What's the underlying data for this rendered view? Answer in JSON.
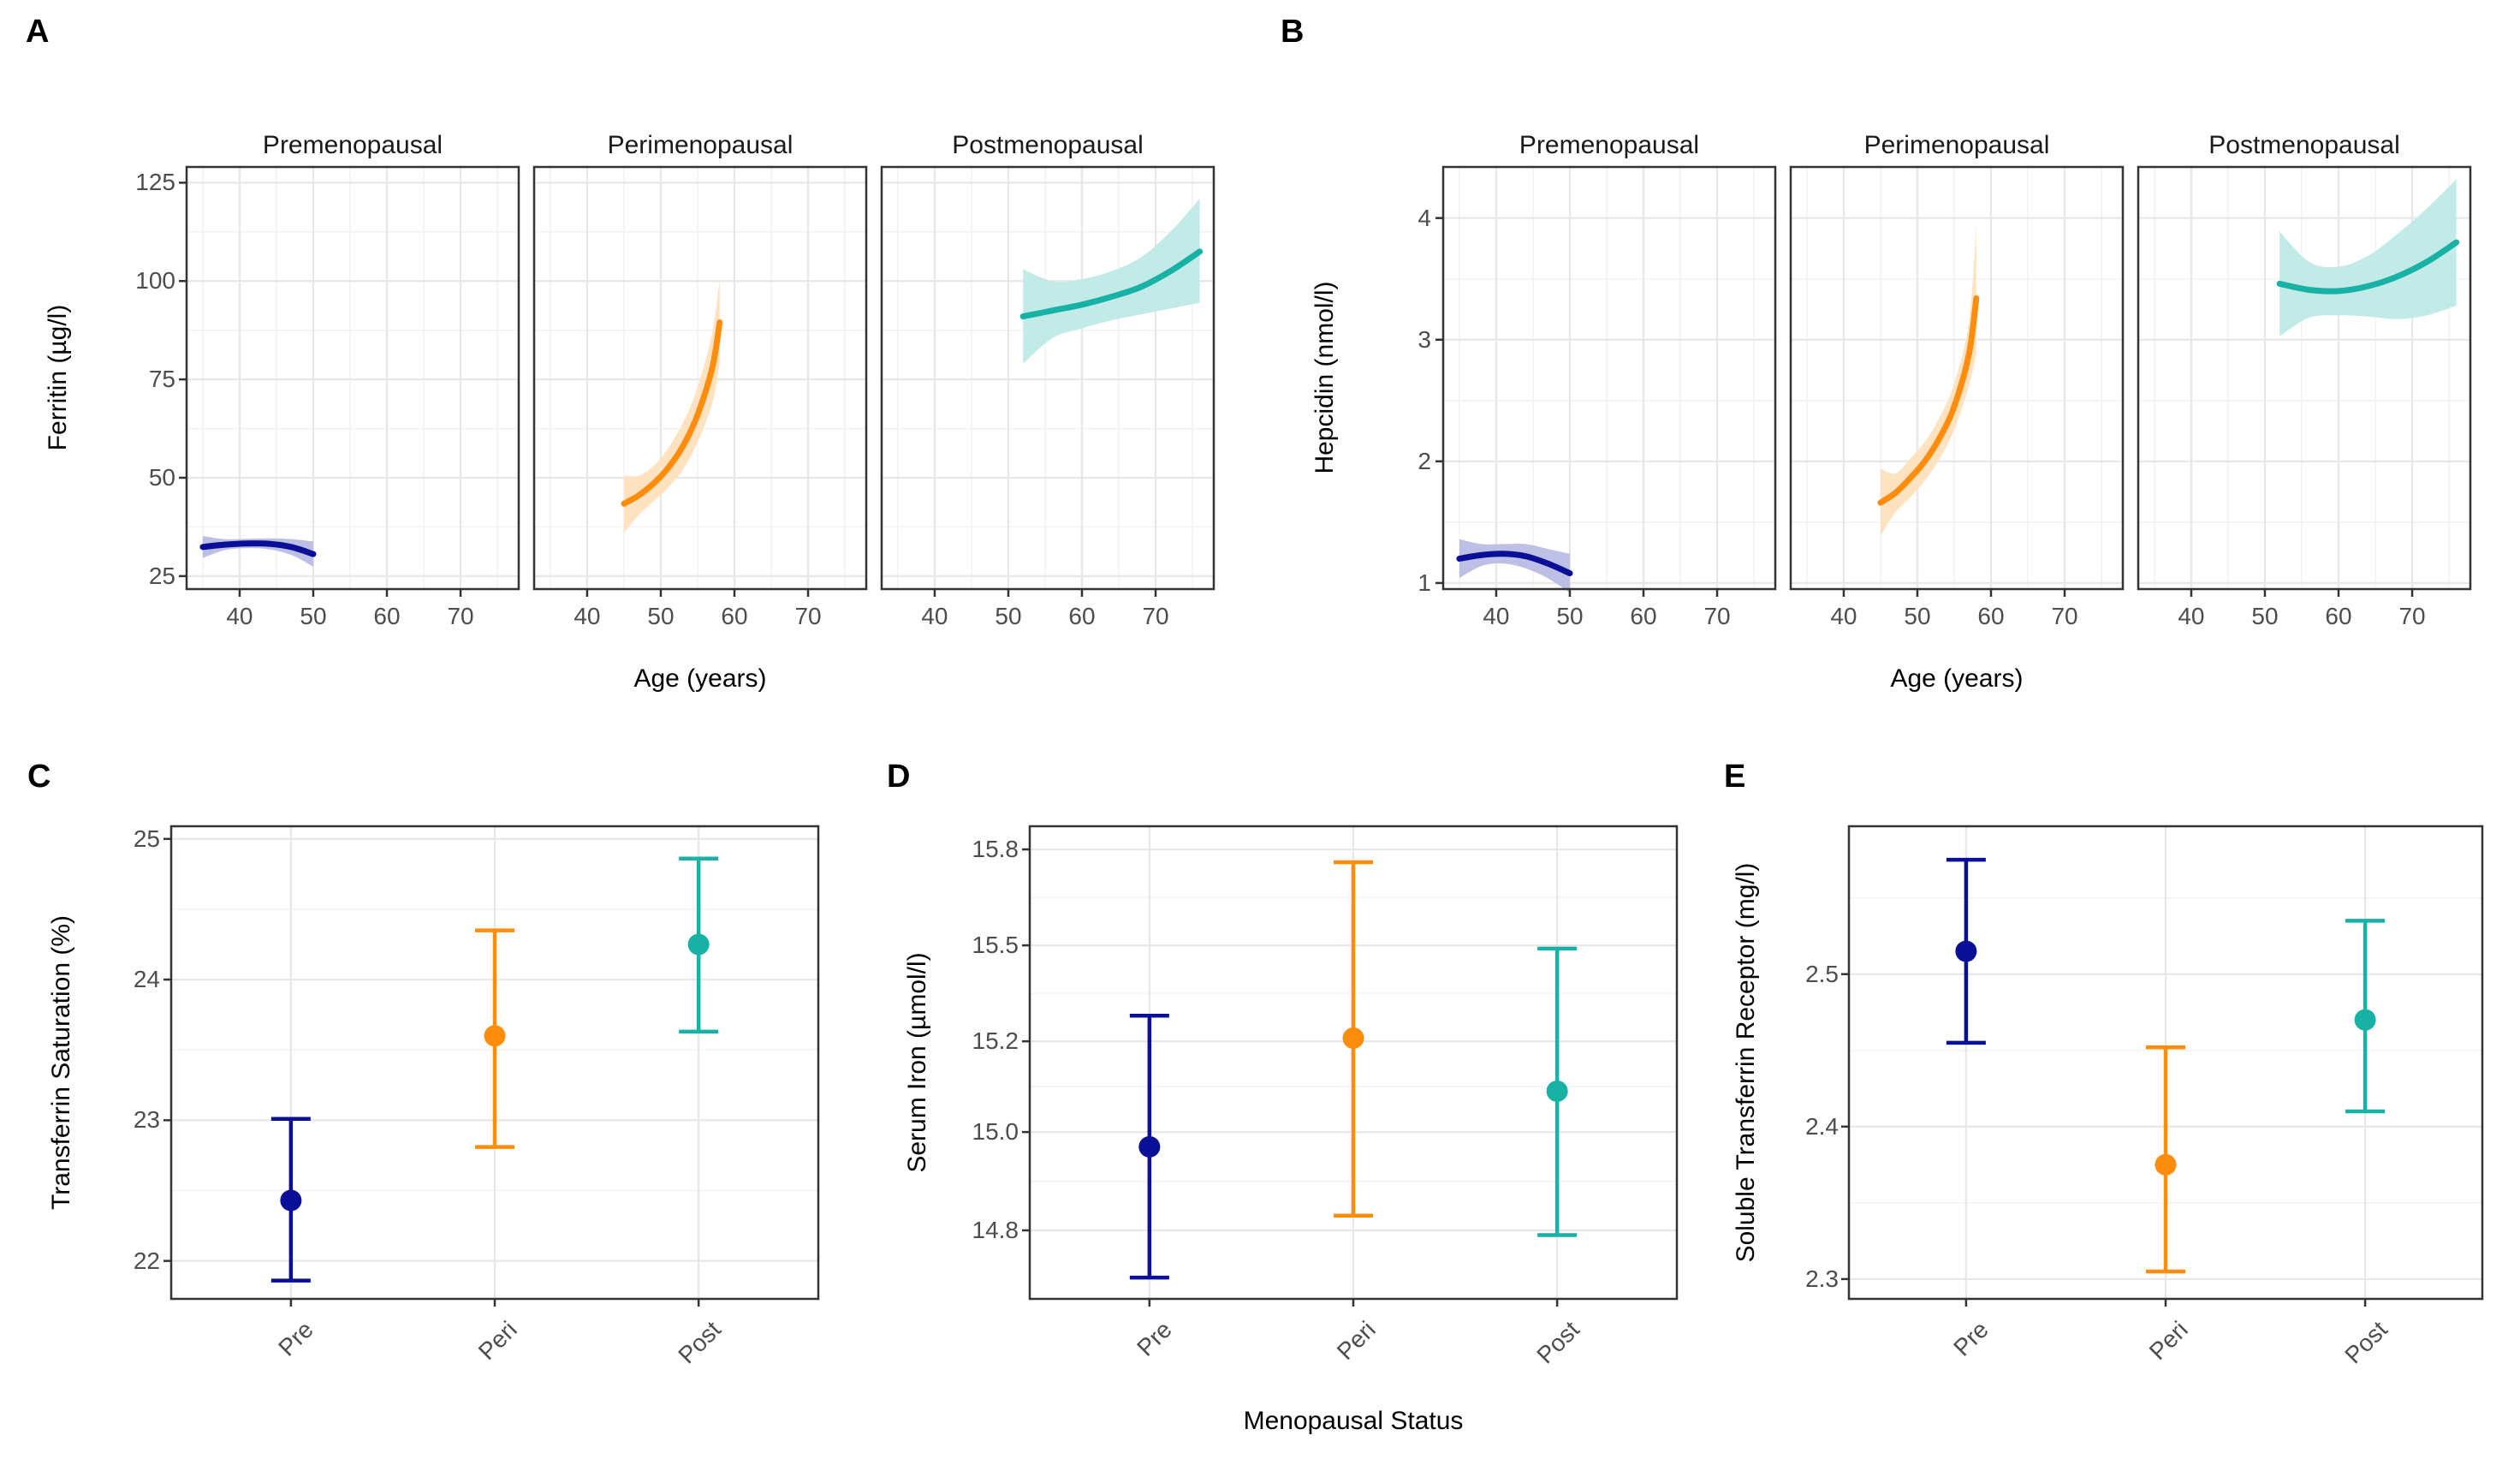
{
  "figure": {
    "background": "#ffffff",
    "panel_border_color": "#333333",
    "grid_major_color": "#e7e7e7",
    "grid_minor_color": "#f3f3f3",
    "tick_text_color": "#4d4d4d"
  },
  "colors": {
    "pre_navy": "#0A0F97",
    "peri_orange": "#FF8D0D",
    "post_teal": "#18B1A5",
    "pre_ribbon": "#BDBFE5",
    "peri_ribbon": "#FFE2C0",
    "post_ribbon": "#C2EBE8"
  },
  "chart_data": [
    {
      "id": "A",
      "panel_label": "A",
      "type": "area",
      "title": "",
      "xlabel": "Age (years)",
      "ylabel": "Ferritin (µg/l)",
      "xlim": [
        32.8,
        77.9
      ],
      "xticks": [
        40,
        50,
        60,
        70
      ],
      "xtick_labels": [
        "40",
        "50",
        "60",
        "70"
      ],
      "xminor": [
        35,
        45,
        55,
        65,
        75
      ],
      "ylim": [
        21.7,
        129.0
      ],
      "yticks": [
        25,
        50,
        75,
        100,
        125
      ],
      "ytick_labels": [
        "25",
        "50",
        "75",
        "100",
        "125"
      ],
      "yminor": [
        37.5,
        62.5,
        87.5,
        112.5
      ],
      "grid": true,
      "legend": "none",
      "facets": [
        {
          "title": "Premenopausal",
          "series": "Pre",
          "color_key": "pre_navy",
          "ribbon_key": "pre_ribbon",
          "x": [
            35,
            38,
            41,
            44,
            47,
            50
          ],
          "y": [
            32.4,
            33.0,
            33.3,
            33.2,
            32.4,
            30.6
          ],
          "lo": [
            29.6,
            31.6,
            32.1,
            31.8,
            30.4,
            27.4
          ],
          "hi": [
            35.2,
            34.4,
            34.5,
            34.6,
            34.4,
            33.8
          ]
        },
        {
          "title": "Perimenopausal",
          "series": "Peri",
          "color_key": "peri_orange",
          "ribbon_key": "peri_ribbon",
          "x": [
            45,
            47,
            49,
            51,
            53,
            55,
            57,
            58
          ],
          "y": [
            43.4,
            45.5,
            48.5,
            52.5,
            58.0,
            66.0,
            78.0,
            89.5
          ],
          "lo": [
            36.0,
            40.5,
            44.0,
            47.5,
            52.0,
            59.0,
            69.0,
            79.0
          ],
          "hi": [
            50.5,
            50.5,
            53.0,
            57.5,
            64.0,
            73.0,
            87.0,
            100.5
          ]
        },
        {
          "title": "Postmenopausal",
          "series": "Post",
          "color_key": "post_teal",
          "ribbon_key": "post_ribbon",
          "x": [
            52,
            56,
            60,
            64,
            68,
            72,
            76
          ],
          "y": [
            91.0,
            92.5,
            94.0,
            96.0,
            98.5,
            102.5,
            107.5
          ],
          "lo": [
            79.0,
            85.5,
            88.0,
            90.0,
            91.5,
            93.0,
            94.5
          ],
          "hi": [
            103.0,
            100.0,
            100.5,
            102.5,
            106.0,
            112.5,
            121.0
          ]
        }
      ]
    },
    {
      "id": "B",
      "panel_label": "B",
      "type": "area",
      "title": "",
      "xlabel": "Age (years)",
      "ylabel": "Hepcidin (nmol/l)",
      "xlim": [
        32.8,
        77.9
      ],
      "xticks": [
        40,
        50,
        60,
        70
      ],
      "xtick_labels": [
        "40",
        "50",
        "60",
        "70"
      ],
      "xminor": [
        35,
        45,
        55,
        65,
        75
      ],
      "ylim": [
        0.95,
        4.42
      ],
      "yticks": [
        1,
        2,
        3,
        4
      ],
      "ytick_labels": [
        "1",
        "2",
        "3",
        "4"
      ],
      "yminor": [
        1.5,
        2.5,
        3.5
      ],
      "grid": true,
      "legend": "none",
      "facets": [
        {
          "title": "Premenopausal",
          "series": "Pre",
          "color_key": "pre_navy",
          "ribbon_key": "pre_ribbon",
          "x": [
            35,
            38,
            41,
            44,
            47,
            50
          ],
          "y": [
            1.2,
            1.23,
            1.24,
            1.22,
            1.16,
            1.08
          ],
          "lo": [
            1.04,
            1.14,
            1.16,
            1.12,
            1.04,
            0.92
          ],
          "hi": [
            1.36,
            1.32,
            1.32,
            1.32,
            1.28,
            1.24
          ]
        },
        {
          "title": "Perimenopausal",
          "series": "Peri",
          "color_key": "peri_orange",
          "ribbon_key": "peri_ribbon",
          "x": [
            45,
            47,
            49,
            51,
            53,
            55,
            57,
            58
          ],
          "y": [
            1.66,
            1.74,
            1.86,
            2.0,
            2.19,
            2.45,
            2.88,
            3.34
          ],
          "lo": [
            1.39,
            1.58,
            1.7,
            1.84,
            2.02,
            2.26,
            2.62,
            2.88
          ],
          "hi": [
            1.94,
            1.9,
            2.02,
            2.16,
            2.36,
            2.64,
            3.14,
            3.92
          ]
        },
        {
          "title": "Postmenopausal",
          "series": "Post",
          "color_key": "post_teal",
          "ribbon_key": "post_ribbon",
          "x": [
            52,
            56,
            60,
            64,
            68,
            72,
            76
          ],
          "y": [
            3.46,
            3.41,
            3.4,
            3.44,
            3.52,
            3.64,
            3.8
          ],
          "lo": [
            3.03,
            3.18,
            3.2,
            3.19,
            3.17,
            3.2,
            3.28
          ],
          "hi": [
            3.89,
            3.64,
            3.6,
            3.69,
            3.87,
            4.08,
            4.32
          ]
        }
      ]
    },
    {
      "id": "C",
      "panel_label": "C",
      "type": "pointrange",
      "title": "",
      "xlabel": "",
      "ylabel": "Transferrin Saturation (%)",
      "categories": [
        "Pre",
        "Peri",
        "Post"
      ],
      "color_keys": [
        "pre_navy",
        "peri_orange",
        "post_teal"
      ],
      "values": [
        22.43,
        23.6,
        24.25
      ],
      "lower": [
        21.86,
        22.81,
        23.63
      ],
      "upper": [
        23.01,
        24.35,
        24.86
      ],
      "ylim": [
        21.73,
        25.09
      ],
      "yticks": [
        22,
        23,
        24,
        25
      ],
      "ytick_labels": [
        "22",
        "23",
        "24",
        "25"
      ],
      "yminor": [
        22.5,
        23.5,
        24.5
      ],
      "grid": true,
      "legend": "none"
    },
    {
      "id": "D",
      "panel_label": "D",
      "type": "pointrange",
      "title": "",
      "xlabel": "Menopausal Status",
      "ylabel": "Serum Iron (µmol/l)",
      "categories": [
        "Pre",
        "Peri",
        "Post"
      ],
      "color_keys": [
        "pre_navy",
        "peri_orange",
        "post_teal"
      ],
      "values": [
        14.97,
        15.21,
        15.09
      ],
      "lower": [
        14.7,
        14.83,
        14.79
      ],
      "upper": [
        15.28,
        15.76,
        15.49
      ],
      "ylim": [
        14.655,
        15.872
      ],
      "yticks": [
        14.8,
        15.0,
        15.2,
        15.5,
        15.8
      ],
      "ytick_labels": [
        "14.8",
        "15.0",
        "15.2",
        "15.5",
        "15.8"
      ],
      "yminor": [
        14.9,
        15.1,
        15.35,
        15.65
      ],
      "grid": true,
      "legend": "none"
    },
    {
      "id": "E",
      "panel_label": "E",
      "type": "pointrange",
      "title": "",
      "xlabel": "",
      "ylabel": "Soluble Transferrin Receptor (mg/l)",
      "categories": [
        "Pre",
        "Peri",
        "Post"
      ],
      "color_keys": [
        "pre_navy",
        "peri_orange",
        "post_teal"
      ],
      "values": [
        2.515,
        2.375,
        2.47
      ],
      "lower": [
        2.455,
        2.305,
        2.41
      ],
      "upper": [
        2.575,
        2.452,
        2.535
      ],
      "ylim": [
        2.287,
        2.597
      ],
      "yticks": [
        2.3,
        2.4,
        2.5
      ],
      "ytick_labels": [
        "2.3",
        "2.4",
        "2.5"
      ],
      "yminor": [
        2.35,
        2.45,
        2.55
      ],
      "grid": true,
      "legend": "none"
    }
  ]
}
